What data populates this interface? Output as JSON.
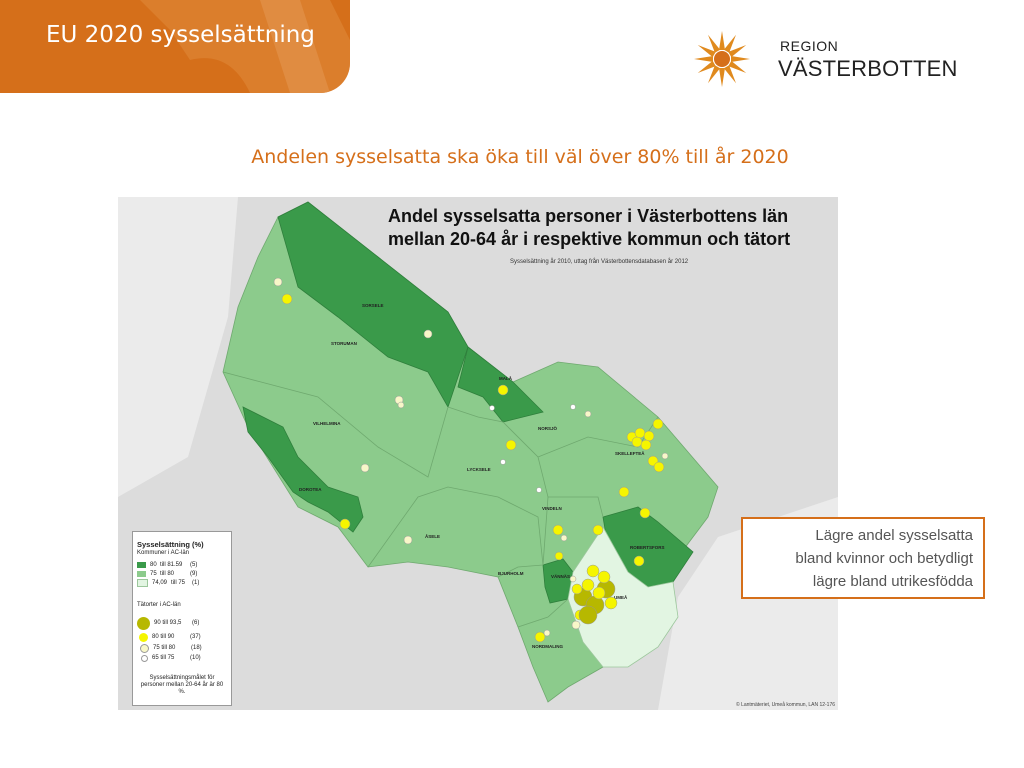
{
  "header": {
    "title": "EU 2020 sysselsättning"
  },
  "logo": {
    "line1": "REGION",
    "line2": "VÄSTERBOTTEN"
  },
  "subtitle": "Andelen sysselsatta ska öka till väl över 80% till år 2020",
  "map": {
    "title_line1": "Andel sysselsatta personer i Västerbottens län",
    "title_line2": "mellan 20-64 år i respektive kommun och tätort",
    "subtitle": "Sysselsättning år 2010, uttag från Västerbottensdatabasen år 2012",
    "copyright": "© Lantmäteriet, Umeå kommun, LAN 12-176",
    "municipalities": [
      "SORSELE",
      "STORUMAN",
      "MALÅ",
      "NORSJÖ",
      "SKELLEFTEÅ",
      "VILHELMINA",
      "LYCKSELE",
      "DOROTEA",
      "ÅSELE",
      "VINDELN",
      "ROBERTSFORS",
      "BJURHOLM",
      "VÄNNÄS",
      "UMEÅ",
      "NORDMALING"
    ]
  },
  "legend": {
    "title": "Sysselsättning (%)",
    "kommuner_label": "Kommuner i AC-län",
    "kommuner": [
      {
        "range": "80",
        "to": "till 81.59",
        "count": "(5)",
        "color": "#3a9a4a"
      },
      {
        "range": "75",
        "to": "till 80",
        "count": "(9)",
        "color": "#8ccb8c"
      },
      {
        "range": "74,09",
        "to": "till 75",
        "count": "(1)",
        "color": "#e2f5e2"
      }
    ],
    "tatorter_label": "Tätorter i AC-län",
    "tatorter": [
      {
        "label": "90 till 93,5",
        "count": "(6)",
        "color": "#b7b800"
      },
      {
        "label": "80 till 90",
        "count": "(37)",
        "color": "#f5f500"
      },
      {
        "label": "75 till 80",
        "count": "(18)",
        "color": "#f8f7c8"
      },
      {
        "label": "65 till 75",
        "count": "(10)",
        "color": "#ffffff"
      }
    ],
    "note": "Sysselsättningsmålet för personer mellan 20-64 år är 80 %."
  },
  "callout": {
    "line1": "Lägre andel sysselsatta",
    "line2": "bland kvinnor och betydligt",
    "line3": "lägre bland utrikesfödda"
  },
  "colors": {
    "accent": "#d56f1a",
    "high": "#3a9a4a",
    "mid": "#8ccb8c",
    "low": "#e2f5e2"
  }
}
